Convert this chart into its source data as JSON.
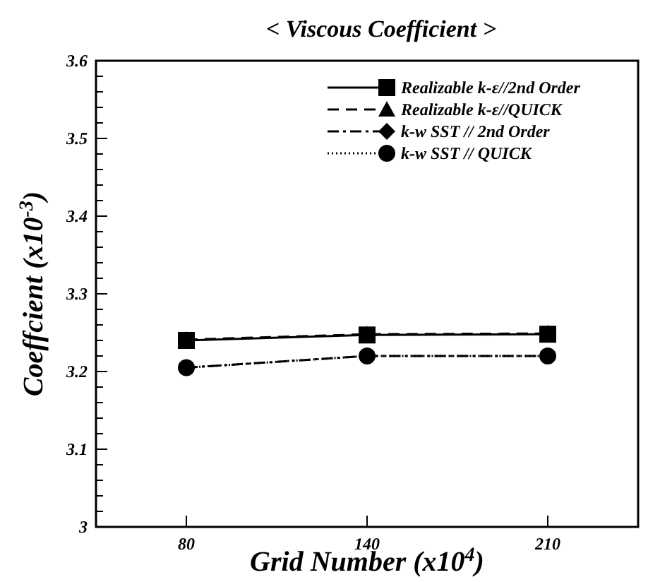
{
  "chart_data": {
    "type": "line",
    "title": "< Viscous Coefficient >",
    "xlabel": "Grid Number (x10$^{4}$)",
    "ylabel": "Coeffcient (x10$^{-3}$)",
    "categories": [
      "80",
      "140",
      "210"
    ],
    "series": [
      {
        "name": "Realizable k-ε//2nd Order",
        "color": "#000000",
        "marker": "square",
        "line_style": "solid",
        "values": [
          3.24,
          3.247,
          3.248
        ]
      },
      {
        "name": "Realizable k-ε//QUICK",
        "color": "#000000",
        "marker": "triangle",
        "line_style": "dashed",
        "values": [
          3.241,
          3.248,
          3.249
        ]
      },
      {
        "name": "k-w SST // 2nd Order",
        "color": "#000000",
        "marker": "diamond",
        "line_style": "dashdot",
        "values": [
          3.205,
          3.22,
          3.22
        ]
      },
      {
        "name": "k-w SST // QUICK",
        "color": "#000000",
        "marker": "circle",
        "line_style": "dotted",
        "values": [
          3.205,
          3.22,
          3.22
        ]
      }
    ],
    "ylim": [
      3,
      3.6
    ],
    "yticks": [
      3,
      {
        "value": 3.02,
        "label": null
      },
      {
        "value": 3.04,
        "label": null
      },
      {
        "value": 3.06,
        "label": null
      },
      {
        "value": 3.08,
        "label": null
      },
      3.1,
      {
        "value": 3.12,
        "label": null
      },
      {
        "value": 3.14,
        "label": null
      },
      {
        "value": 3.16,
        "label": null
      },
      {
        "value": 3.18,
        "label": null
      },
      3.2,
      {
        "value": 3.22,
        "label": null
      },
      {
        "value": 3.24,
        "label": null
      },
      {
        "value": 3.26,
        "label": null
      },
      {
        "value": 3.28,
        "label": null
      },
      3.3,
      {
        "value": 3.32,
        "label": null
      },
      {
        "value": 3.34,
        "label": null
      },
      {
        "value": 3.36,
        "label": null
      },
      {
        "value": 3.38,
        "label": null
      },
      3.4,
      {
        "value": 3.42,
        "label": null
      },
      {
        "value": 3.44,
        "label": null
      },
      {
        "value": 3.46,
        "label": null
      },
      {
        "value": 3.48,
        "label": null
      },
      3.5,
      {
        "value": 3.52,
        "label": null
      },
      {
        "value": 3.54,
        "label": null
      },
      {
        "value": 3.56,
        "label": null
      },
      {
        "value": 3.58,
        "label": null
      },
      3.6
    ],
    "legend": "top right",
    "grid": false
  }
}
